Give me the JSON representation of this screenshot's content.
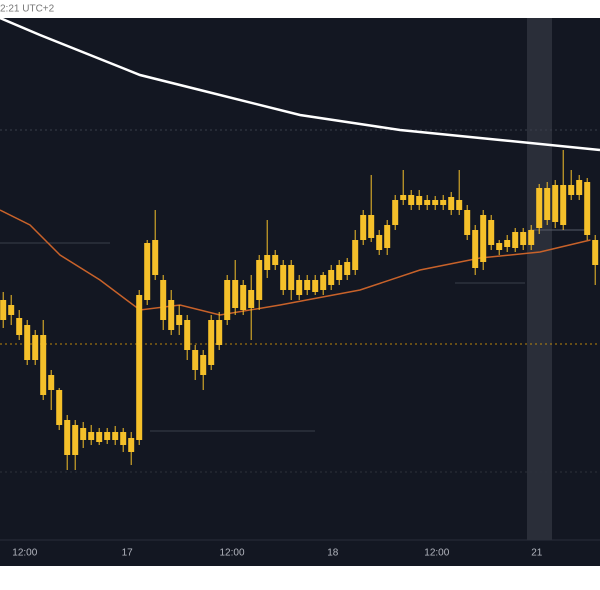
{
  "header_text": "2:21 UTC+2",
  "chart_data": {
    "type": "candlestick",
    "xlim": [
      -0.4,
      74.6
    ],
    "ylim": [
      0,
      522
    ],
    "xticks": [
      {
        "value": 2.7,
        "label": "12:00"
      },
      {
        "value": 15.5,
        "label": "17"
      },
      {
        "value": 28.6,
        "label": "12:00"
      },
      {
        "value": 41.2,
        "label": "18"
      },
      {
        "value": 54.2,
        "label": "12:00"
      },
      {
        "value": 66.7,
        "label": "21"
      }
    ],
    "color": "#f5c02a",
    "open": [
      240,
      225,
      222,
      215,
      180,
      205,
      165,
      150,
      120,
      85,
      100,
      108,
      98,
      108,
      100,
      108,
      102,
      100,
      240,
      300,
      260,
      240,
      215,
      220,
      190,
      185,
      175,
      195,
      220,
      260,
      230,
      250,
      240,
      270,
      285,
      275,
      250,
      260,
      250,
      260,
      250,
      255,
      260,
      265,
      270,
      300,
      325,
      305,
      292,
      315,
      340,
      345,
      335,
      340,
      335,
      340,
      330,
      340,
      330,
      310,
      278,
      320,
      297,
      293,
      292,
      308,
      295,
      312,
      352,
      318,
      355,
      345,
      345,
      358,
      300
    ],
    "high": [
      248,
      245,
      230,
      220,
      210,
      220,
      170,
      152,
      125,
      120,
      118,
      115,
      112,
      112,
      114,
      112,
      108,
      250,
      300,
      330,
      265,
      250,
      235,
      225,
      195,
      190,
      225,
      228,
      265,
      280,
      260,
      265,
      285,
      320,
      290,
      280,
      280,
      265,
      265,
      265,
      268,
      275,
      280,
      282,
      310,
      330,
      365,
      310,
      320,
      345,
      370,
      350,
      350,
      345,
      344,
      345,
      348,
      370,
      335,
      315,
      330,
      325,
      300,
      305,
      312,
      312,
      315,
      356,
      358,
      360,
      390,
      370,
      365,
      362,
      305
    ],
    "low": [
      212,
      215,
      200,
      175,
      175,
      140,
      130,
      110,
      70,
      70,
      92,
      95,
      95,
      96,
      95,
      88,
      75,
      95,
      235,
      260,
      210,
      205,
      205,
      180,
      160,
      150,
      170,
      190,
      215,
      225,
      225,
      200,
      230,
      262,
      270,
      245,
      240,
      240,
      245,
      245,
      245,
      250,
      255,
      260,
      265,
      295,
      298,
      285,
      285,
      310,
      335,
      330,
      330,
      330,
      330,
      330,
      325,
      325,
      300,
      265,
      270,
      290,
      285,
      288,
      288,
      290,
      290,
      306,
      315,
      312,
      310,
      340,
      340,
      300,
      255
    ],
    "close": [
      220,
      235,
      205,
      180,
      205,
      145,
      150,
      115,
      85,
      115,
      112,
      100,
      108,
      100,
      108,
      95,
      88,
      245,
      297,
      265,
      220,
      210,
      225,
      190,
      170,
      165,
      220,
      220,
      260,
      232,
      255,
      232,
      280,
      285,
      275,
      250,
      275,
      245,
      260,
      248,
      265,
      270,
      275,
      278,
      300,
      325,
      302,
      290,
      315,
      340,
      345,
      335,
      344,
      335,
      340,
      335,
      343,
      330,
      305,
      272,
      325,
      295,
      290,
      300,
      308,
      295,
      310,
      352,
      320,
      355,
      315,
      355,
      360,
      305,
      275
    ],
    "lines": [
      {
        "color": "#ffffff",
        "x": [
          -0.4,
          4.6,
          17.1,
          24.6,
          37.1,
          49.6,
          62.1,
          74.6
        ],
        "values": [
          522,
          505,
          465,
          450,
          425,
          410,
          400,
          390
        ]
      },
      {
        "color": "#c8622a",
        "x": [
          -0.4,
          3.35,
          7.1,
          12.1,
          17.1,
          22.1,
          27.1,
          34.6,
          44.6,
          52.1,
          59.6,
          67.1,
          73.4
        ],
        "values": [
          330,
          315,
          285,
          260,
          230,
          235,
          225,
          235,
          250,
          270,
          282,
          288,
          300
        ]
      }
    ]
  }
}
